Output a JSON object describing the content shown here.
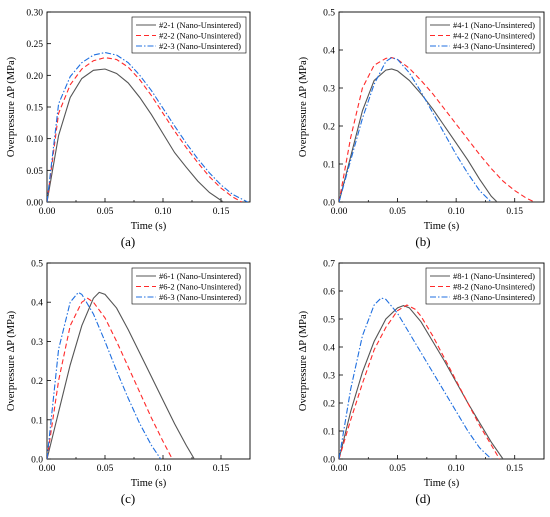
{
  "chart_data": [
    {
      "type": "line",
      "caption": "(a)",
      "xlabel": "Time (s)",
      "ylabel": "Overpressure ΔP  (MPa)",
      "xlim": [
        0,
        0.175
      ],
      "ylim": [
        0,
        0.3
      ],
      "xticks": [
        "0.00",
        "0.05",
        "0.10",
        "0.15"
      ],
      "yticks": [
        "0.00",
        "0.05",
        "0.10",
        "0.15",
        "0.20",
        "0.25",
        "0.30"
      ],
      "legend_position": "top-right",
      "grid": false,
      "series": [
        {
          "name": "#2-1 (Nano-Unsintered)",
          "color": "#555555",
          "dash": "solid",
          "points": [
            [
              0,
              0
            ],
            [
              0.01,
              0.105
            ],
            [
              0.02,
              0.165
            ],
            [
              0.03,
              0.195
            ],
            [
              0.04,
              0.208
            ],
            [
              0.05,
              0.21
            ],
            [
              0.06,
              0.203
            ],
            [
              0.07,
              0.188
            ],
            [
              0.08,
              0.165
            ],
            [
              0.09,
              0.138
            ],
            [
              0.1,
              0.108
            ],
            [
              0.11,
              0.078
            ],
            [
              0.12,
              0.055
            ],
            [
              0.13,
              0.033
            ],
            [
              0.14,
              0.015
            ],
            [
              0.152,
              0
            ]
          ]
        },
        {
          "name": "#2-2 (Nano-Unsintered)",
          "color": "#ff2a2a",
          "dash": "dashed",
          "points": [
            [
              0,
              0
            ],
            [
              0.01,
              0.14
            ],
            [
              0.02,
              0.185
            ],
            [
              0.03,
              0.21
            ],
            [
              0.04,
              0.223
            ],
            [
              0.05,
              0.228
            ],
            [
              0.06,
              0.225
            ],
            [
              0.07,
              0.213
            ],
            [
              0.08,
              0.193
            ],
            [
              0.09,
              0.168
            ],
            [
              0.1,
              0.14
            ],
            [
              0.11,
              0.112
            ],
            [
              0.12,
              0.086
            ],
            [
              0.13,
              0.062
            ],
            [
              0.14,
              0.04
            ],
            [
              0.15,
              0.022
            ],
            [
              0.16,
              0.008
            ],
            [
              0.168,
              0
            ]
          ]
        },
        {
          "name": "#2-3 (Nano-Unsintered)",
          "color": "#1f6fe0",
          "dash": "dashdot",
          "points": [
            [
              0,
              0
            ],
            [
              0.01,
              0.155
            ],
            [
              0.02,
              0.198
            ],
            [
              0.03,
              0.22
            ],
            [
              0.04,
              0.232
            ],
            [
              0.05,
              0.236
            ],
            [
              0.06,
              0.232
            ],
            [
              0.07,
              0.22
            ],
            [
              0.08,
              0.2
            ],
            [
              0.09,
              0.176
            ],
            [
              0.1,
              0.148
            ],
            [
              0.11,
              0.12
            ],
            [
              0.12,
              0.093
            ],
            [
              0.13,
              0.068
            ],
            [
              0.14,
              0.046
            ],
            [
              0.15,
              0.027
            ],
            [
              0.16,
              0.012
            ],
            [
              0.173,
              0
            ]
          ]
        }
      ]
    },
    {
      "type": "line",
      "caption": "(b)",
      "xlabel": "Time (s)",
      "ylabel": "Overpressure ΔP  (MPa)",
      "xlim": [
        0,
        0.175
      ],
      "ylim": [
        0,
        0.5
      ],
      "xticks": [
        "0.00",
        "0.05",
        "0.10",
        "0.15"
      ],
      "yticks": [
        "0.0",
        "0.1",
        "0.2",
        "0.3",
        "0.4",
        "0.5"
      ],
      "legend_position": "top-right",
      "grid": false,
      "series": [
        {
          "name": "#4-1 (Nano-Unsintered)",
          "color": "#555555",
          "dash": "solid",
          "points": [
            [
              0,
              0
            ],
            [
              0.01,
              0.12
            ],
            [
              0.02,
              0.24
            ],
            [
              0.03,
              0.32
            ],
            [
              0.04,
              0.347
            ],
            [
              0.045,
              0.35
            ],
            [
              0.05,
              0.345
            ],
            [
              0.06,
              0.32
            ],
            [
              0.07,
              0.285
            ],
            [
              0.08,
              0.245
            ],
            [
              0.09,
              0.2
            ],
            [
              0.1,
              0.155
            ],
            [
              0.11,
              0.11
            ],
            [
              0.12,
              0.06
            ],
            [
              0.13,
              0.015
            ],
            [
              0.135,
              0
            ]
          ]
        },
        {
          "name": "#4-2 (Nano-Unsintered)",
          "color": "#ff2a2a",
          "dash": "dashed",
          "points": [
            [
              0,
              0
            ],
            [
              0.01,
              0.17
            ],
            [
              0.02,
              0.3
            ],
            [
              0.03,
              0.36
            ],
            [
              0.04,
              0.378
            ],
            [
              0.045,
              0.38
            ],
            [
              0.05,
              0.375
            ],
            [
              0.06,
              0.352
            ],
            [
              0.07,
              0.32
            ],
            [
              0.08,
              0.285
            ],
            [
              0.09,
              0.245
            ],
            [
              0.1,
              0.205
            ],
            [
              0.11,
              0.165
            ],
            [
              0.12,
              0.125
            ],
            [
              0.13,
              0.088
            ],
            [
              0.14,
              0.055
            ],
            [
              0.15,
              0.03
            ],
            [
              0.16,
              0.01
            ],
            [
              0.167,
              0
            ]
          ]
        },
        {
          "name": "#4-3 (Nano-Unsintered)",
          "color": "#1f6fe0",
          "dash": "dashdot",
          "points": [
            [
              0,
              0
            ],
            [
              0.01,
              0.11
            ],
            [
              0.02,
              0.22
            ],
            [
              0.03,
              0.31
            ],
            [
              0.04,
              0.37
            ],
            [
              0.045,
              0.38
            ],
            [
              0.05,
              0.375
            ],
            [
              0.06,
              0.34
            ],
            [
              0.07,
              0.29
            ],
            [
              0.08,
              0.235
            ],
            [
              0.09,
              0.18
            ],
            [
              0.1,
              0.125
            ],
            [
              0.11,
              0.075
            ],
            [
              0.12,
              0.03
            ],
            [
              0.13,
              0
            ]
          ]
        }
      ]
    },
    {
      "type": "line",
      "caption": "(c)",
      "xlabel": "Time (s)",
      "ylabel": "Overpressure ΔP  (MPa)",
      "xlim": [
        0,
        0.175
      ],
      "ylim": [
        0,
        0.5
      ],
      "xticks": [
        "0.00",
        "0.05",
        "0.10",
        "0.15"
      ],
      "yticks": [
        "0.0",
        "0.1",
        "0.2",
        "0.3",
        "0.4",
        "0.5"
      ],
      "legend_position": "top-right",
      "grid": false,
      "series": [
        {
          "name": "#6-1 (Nano-Unsintered)",
          "color": "#555555",
          "dash": "solid",
          "points": [
            [
              0,
              0
            ],
            [
              0.01,
              0.12
            ],
            [
              0.02,
              0.24
            ],
            [
              0.03,
              0.34
            ],
            [
              0.04,
              0.41
            ],
            [
              0.045,
              0.425
            ],
            [
              0.05,
              0.42
            ],
            [
              0.06,
              0.385
            ],
            [
              0.07,
              0.33
            ],
            [
              0.08,
              0.27
            ],
            [
              0.09,
              0.21
            ],
            [
              0.1,
              0.15
            ],
            [
              0.11,
              0.09
            ],
            [
              0.12,
              0.035
            ],
            [
              0.127,
              0
            ]
          ]
        },
        {
          "name": "#6-2 (Nano-Unsintered)",
          "color": "#ff2a2a",
          "dash": "dashed",
          "points": [
            [
              0,
              0
            ],
            [
              0.01,
              0.2
            ],
            [
              0.02,
              0.34
            ],
            [
              0.03,
              0.4
            ],
            [
              0.035,
              0.41
            ],
            [
              0.04,
              0.4
            ],
            [
              0.05,
              0.36
            ],
            [
              0.06,
              0.3
            ],
            [
              0.07,
              0.235
            ],
            [
              0.08,
              0.17
            ],
            [
              0.09,
              0.105
            ],
            [
              0.1,
              0.045
            ],
            [
              0.108,
              0
            ]
          ]
        },
        {
          "name": "#6-3 (Nano-Unsintered)",
          "color": "#1f6fe0",
          "dash": "dashdot",
          "points": [
            [
              0,
              0
            ],
            [
              0.01,
              0.28
            ],
            [
              0.02,
              0.4
            ],
            [
              0.027,
              0.425
            ],
            [
              0.03,
              0.42
            ],
            [
              0.04,
              0.37
            ],
            [
              0.05,
              0.3
            ],
            [
              0.06,
              0.225
            ],
            [
              0.07,
              0.155
            ],
            [
              0.08,
              0.09
            ],
            [
              0.09,
              0.035
            ],
            [
              0.098,
              0
            ]
          ]
        }
      ]
    },
    {
      "type": "line",
      "caption": "(d)",
      "xlabel": "Time (s)",
      "ylabel": "Overpressure ΔP  (MPa)",
      "xlim": [
        0,
        0.175
      ],
      "ylim": [
        0,
        0.7
      ],
      "xticks": [
        "0.00",
        "0.05",
        "0.10",
        "0.15"
      ],
      "yticks": [
        "0.0",
        "0.1",
        "0.2",
        "0.3",
        "0.4",
        "0.5",
        "0.6",
        "0.7"
      ],
      "legend_position": "top-right",
      "grid": false,
      "series": [
        {
          "name": "#8-1 (Nano-Unsintered)",
          "color": "#555555",
          "dash": "solid",
          "points": [
            [
              0,
              0
            ],
            [
              0.01,
              0.17
            ],
            [
              0.02,
              0.31
            ],
            [
              0.03,
              0.42
            ],
            [
              0.04,
              0.5
            ],
            [
              0.05,
              0.54
            ],
            [
              0.055,
              0.548
            ],
            [
              0.06,
              0.54
            ],
            [
              0.07,
              0.49
            ],
            [
              0.08,
              0.42
            ],
            [
              0.09,
              0.35
            ],
            [
              0.1,
              0.275
            ],
            [
              0.11,
              0.2
            ],
            [
              0.12,
              0.13
            ],
            [
              0.13,
              0.06
            ],
            [
              0.14,
              0
            ]
          ]
        },
        {
          "name": "#8-2 (Nano-Unsintered)",
          "color": "#ff2a2a",
          "dash": "dashed",
          "points": [
            [
              0,
              0
            ],
            [
              0.01,
              0.14
            ],
            [
              0.02,
              0.27
            ],
            [
              0.03,
              0.39
            ],
            [
              0.04,
              0.47
            ],
            [
              0.05,
              0.53
            ],
            [
              0.058,
              0.55
            ],
            [
              0.065,
              0.535
            ],
            [
              0.07,
              0.51
            ],
            [
              0.08,
              0.44
            ],
            [
              0.09,
              0.36
            ],
            [
              0.1,
              0.28
            ],
            [
              0.11,
              0.2
            ],
            [
              0.12,
              0.12
            ],
            [
              0.13,
              0.05
            ],
            [
              0.137,
              0
            ]
          ]
        },
        {
          "name": "#8-3 (Nano-Unsintered)",
          "color": "#1f6fe0",
          "dash": "dashdot",
          "points": [
            [
              0,
              0
            ],
            [
              0.01,
              0.25
            ],
            [
              0.02,
              0.44
            ],
            [
              0.03,
              0.55
            ],
            [
              0.036,
              0.575
            ],
            [
              0.04,
              0.57
            ],
            [
              0.05,
              0.52
            ],
            [
              0.06,
              0.45
            ],
            [
              0.07,
              0.38
            ],
            [
              0.08,
              0.31
            ],
            [
              0.09,
              0.24
            ],
            [
              0.1,
              0.17
            ],
            [
              0.11,
              0.1
            ],
            [
              0.12,
              0.04
            ],
            [
              0.13,
              0
            ]
          ]
        }
      ]
    }
  ]
}
